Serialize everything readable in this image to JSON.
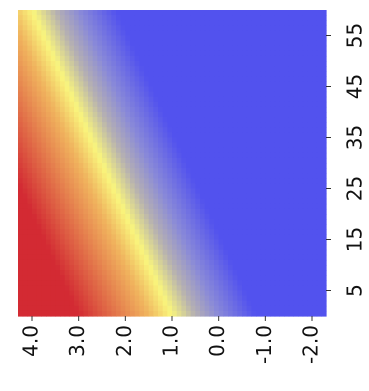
{
  "chart_data": {
    "type": "heatmap",
    "title": "",
    "xlabel": "",
    "ylabel": "",
    "x": {
      "range": [
        4.3,
        -2.3
      ],
      "tick_labels": [
        "4.0",
        "3.0",
        "2.0",
        "1.0",
        "0.0",
        "-1.0",
        "-2.0"
      ],
      "tick_values": [
        4.0,
        3.0,
        2.0,
        1.0,
        0.0,
        -1.0,
        -2.0
      ],
      "position": "bottom"
    },
    "y": {
      "range": [
        0,
        60
      ],
      "tick_labels": [
        "5",
        "15",
        "25",
        "35",
        "45",
        "55"
      ],
      "tick_values": [
        5,
        15,
        25,
        35,
        45,
        55
      ],
      "position": "right"
    },
    "grid": false,
    "legend": "none",
    "colormap": {
      "stops": [
        {
          "value": -0.8,
          "color": "#5252ee"
        },
        {
          "value": 0.0,
          "color": "#8a8ad8"
        },
        {
          "value": 0.5,
          "color": "#b6b1b1"
        },
        {
          "value": 1.0,
          "color": "#f9f57c"
        },
        {
          "value": 1.5,
          "color": "#f0b45e"
        },
        {
          "value": 2.2,
          "color": "#e2744a"
        },
        {
          "value": 3.0,
          "color": "#d32a33"
        }
      ],
      "field": "value = x - 0.05 * y"
    }
  }
}
